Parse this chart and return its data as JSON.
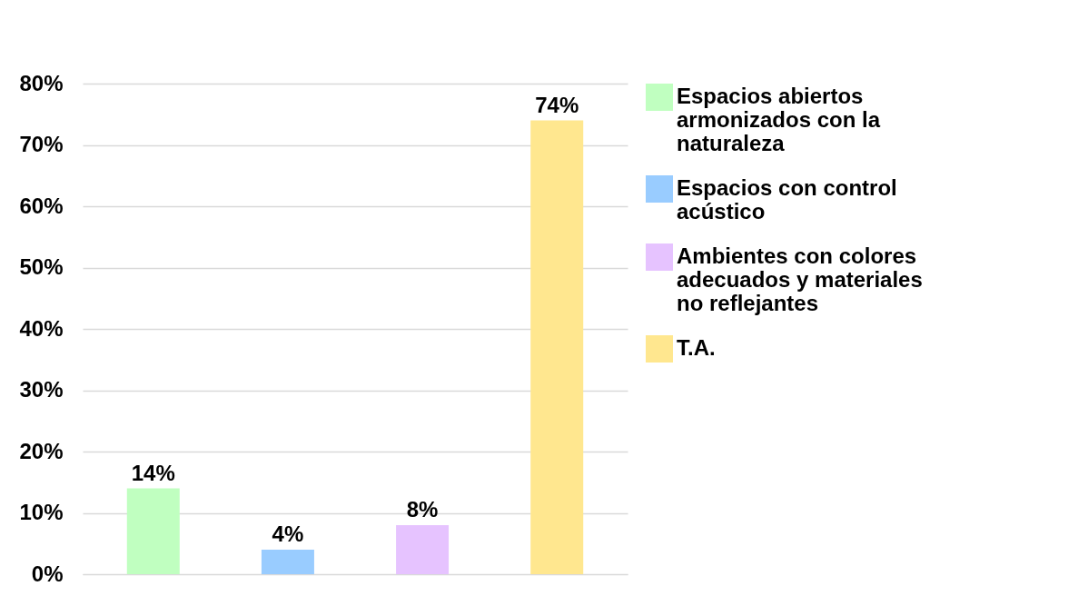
{
  "chart_data": {
    "type": "bar",
    "categories": [
      null,
      null,
      null,
      null
    ],
    "series": [
      {
        "name": "Espacios abiertos armonizados con la naturaleza",
        "color": "#c0ffc0",
        "values": [
          14,
          null,
          null,
          null
        ],
        "value_labels": [
          "14%",
          null,
          null,
          null
        ]
      },
      {
        "name": "Espacios con control acústico",
        "color": "#99ccff",
        "values": [
          null,
          4,
          null,
          null
        ],
        "value_labels": [
          null,
          "4%",
          null,
          null
        ]
      },
      {
        "name": "Ambientes con colores adecuados y materiales no reflejantes",
        "color": "#e6c3ff",
        "values": [
          null,
          null,
          8,
          null
        ],
        "value_labels": [
          null,
          null,
          "8%",
          null
        ]
      },
      {
        "name": "T.A.",
        "color": "#ffe78f",
        "values": [
          null,
          null,
          null,
          74
        ],
        "value_labels": [
          null,
          null,
          null,
          "74%"
        ]
      }
    ],
    "ylim": [
      0,
      80
    ],
    "yticks": [
      {
        "value": 0,
        "label": "0%"
      },
      {
        "value": 10,
        "label": "10%"
      },
      {
        "value": 20,
        "label": "20%"
      },
      {
        "value": 30,
        "label": "30%"
      },
      {
        "value": 40,
        "label": "40%"
      },
      {
        "value": 50,
        "label": "50%"
      },
      {
        "value": 60,
        "label": "60%"
      },
      {
        "value": 70,
        "label": "70%"
      },
      {
        "value": 80,
        "label": "80%"
      }
    ],
    "grid": "y",
    "legend": "right",
    "tick_labels": "y"
  }
}
